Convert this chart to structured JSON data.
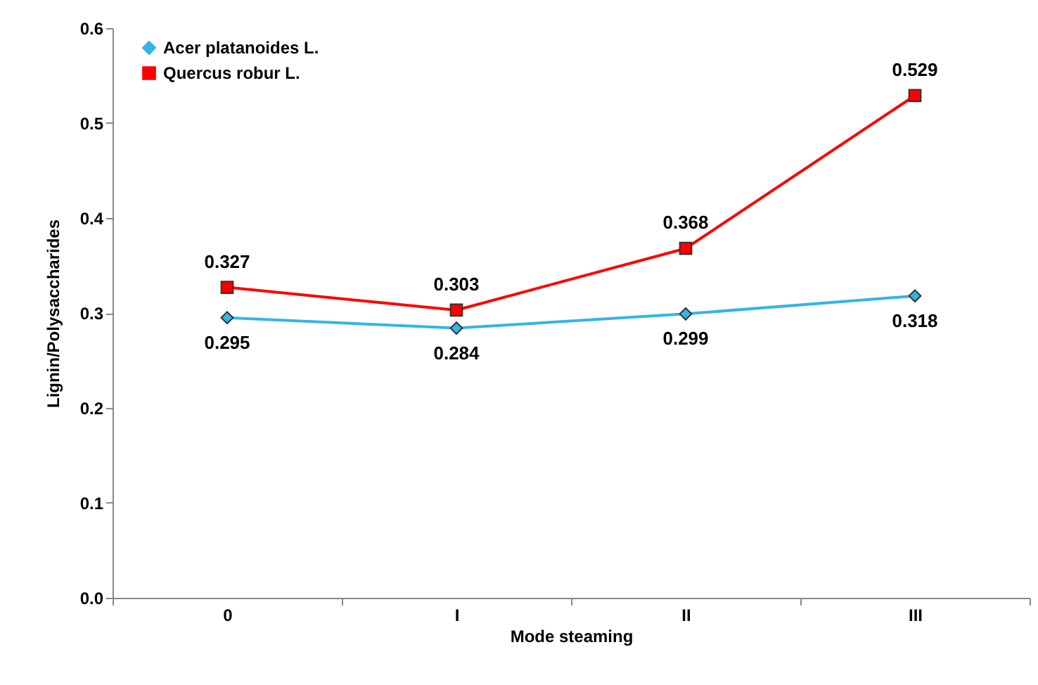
{
  "chart_data": {
    "type": "line",
    "xlabel": "Mode steaming",
    "ylabel": "Lignin/Polysaccharides",
    "categories": [
      "0",
      "I",
      "II",
      "III"
    ],
    "series": [
      {
        "name": "Acer platanoides L.",
        "color": "#33b5e5",
        "marker": "diamond",
        "values": [
          0.295,
          0.284,
          0.299,
          0.318
        ]
      },
      {
        "name": "Quercus robur L.",
        "color": "#ff0000",
        "marker": "square",
        "values": [
          0.327,
          0.303,
          0.368,
          0.529
        ]
      }
    ],
    "ylim": [
      0,
      0.6
    ],
    "yticks": [
      {
        "value": 0,
        "label": "0.0"
      },
      0.1,
      0.2,
      0.3,
      0.4,
      0.5,
      0.6
    ],
    "data_labels": true,
    "grid": false,
    "legend": "top left",
    "line_style": "solid"
  }
}
